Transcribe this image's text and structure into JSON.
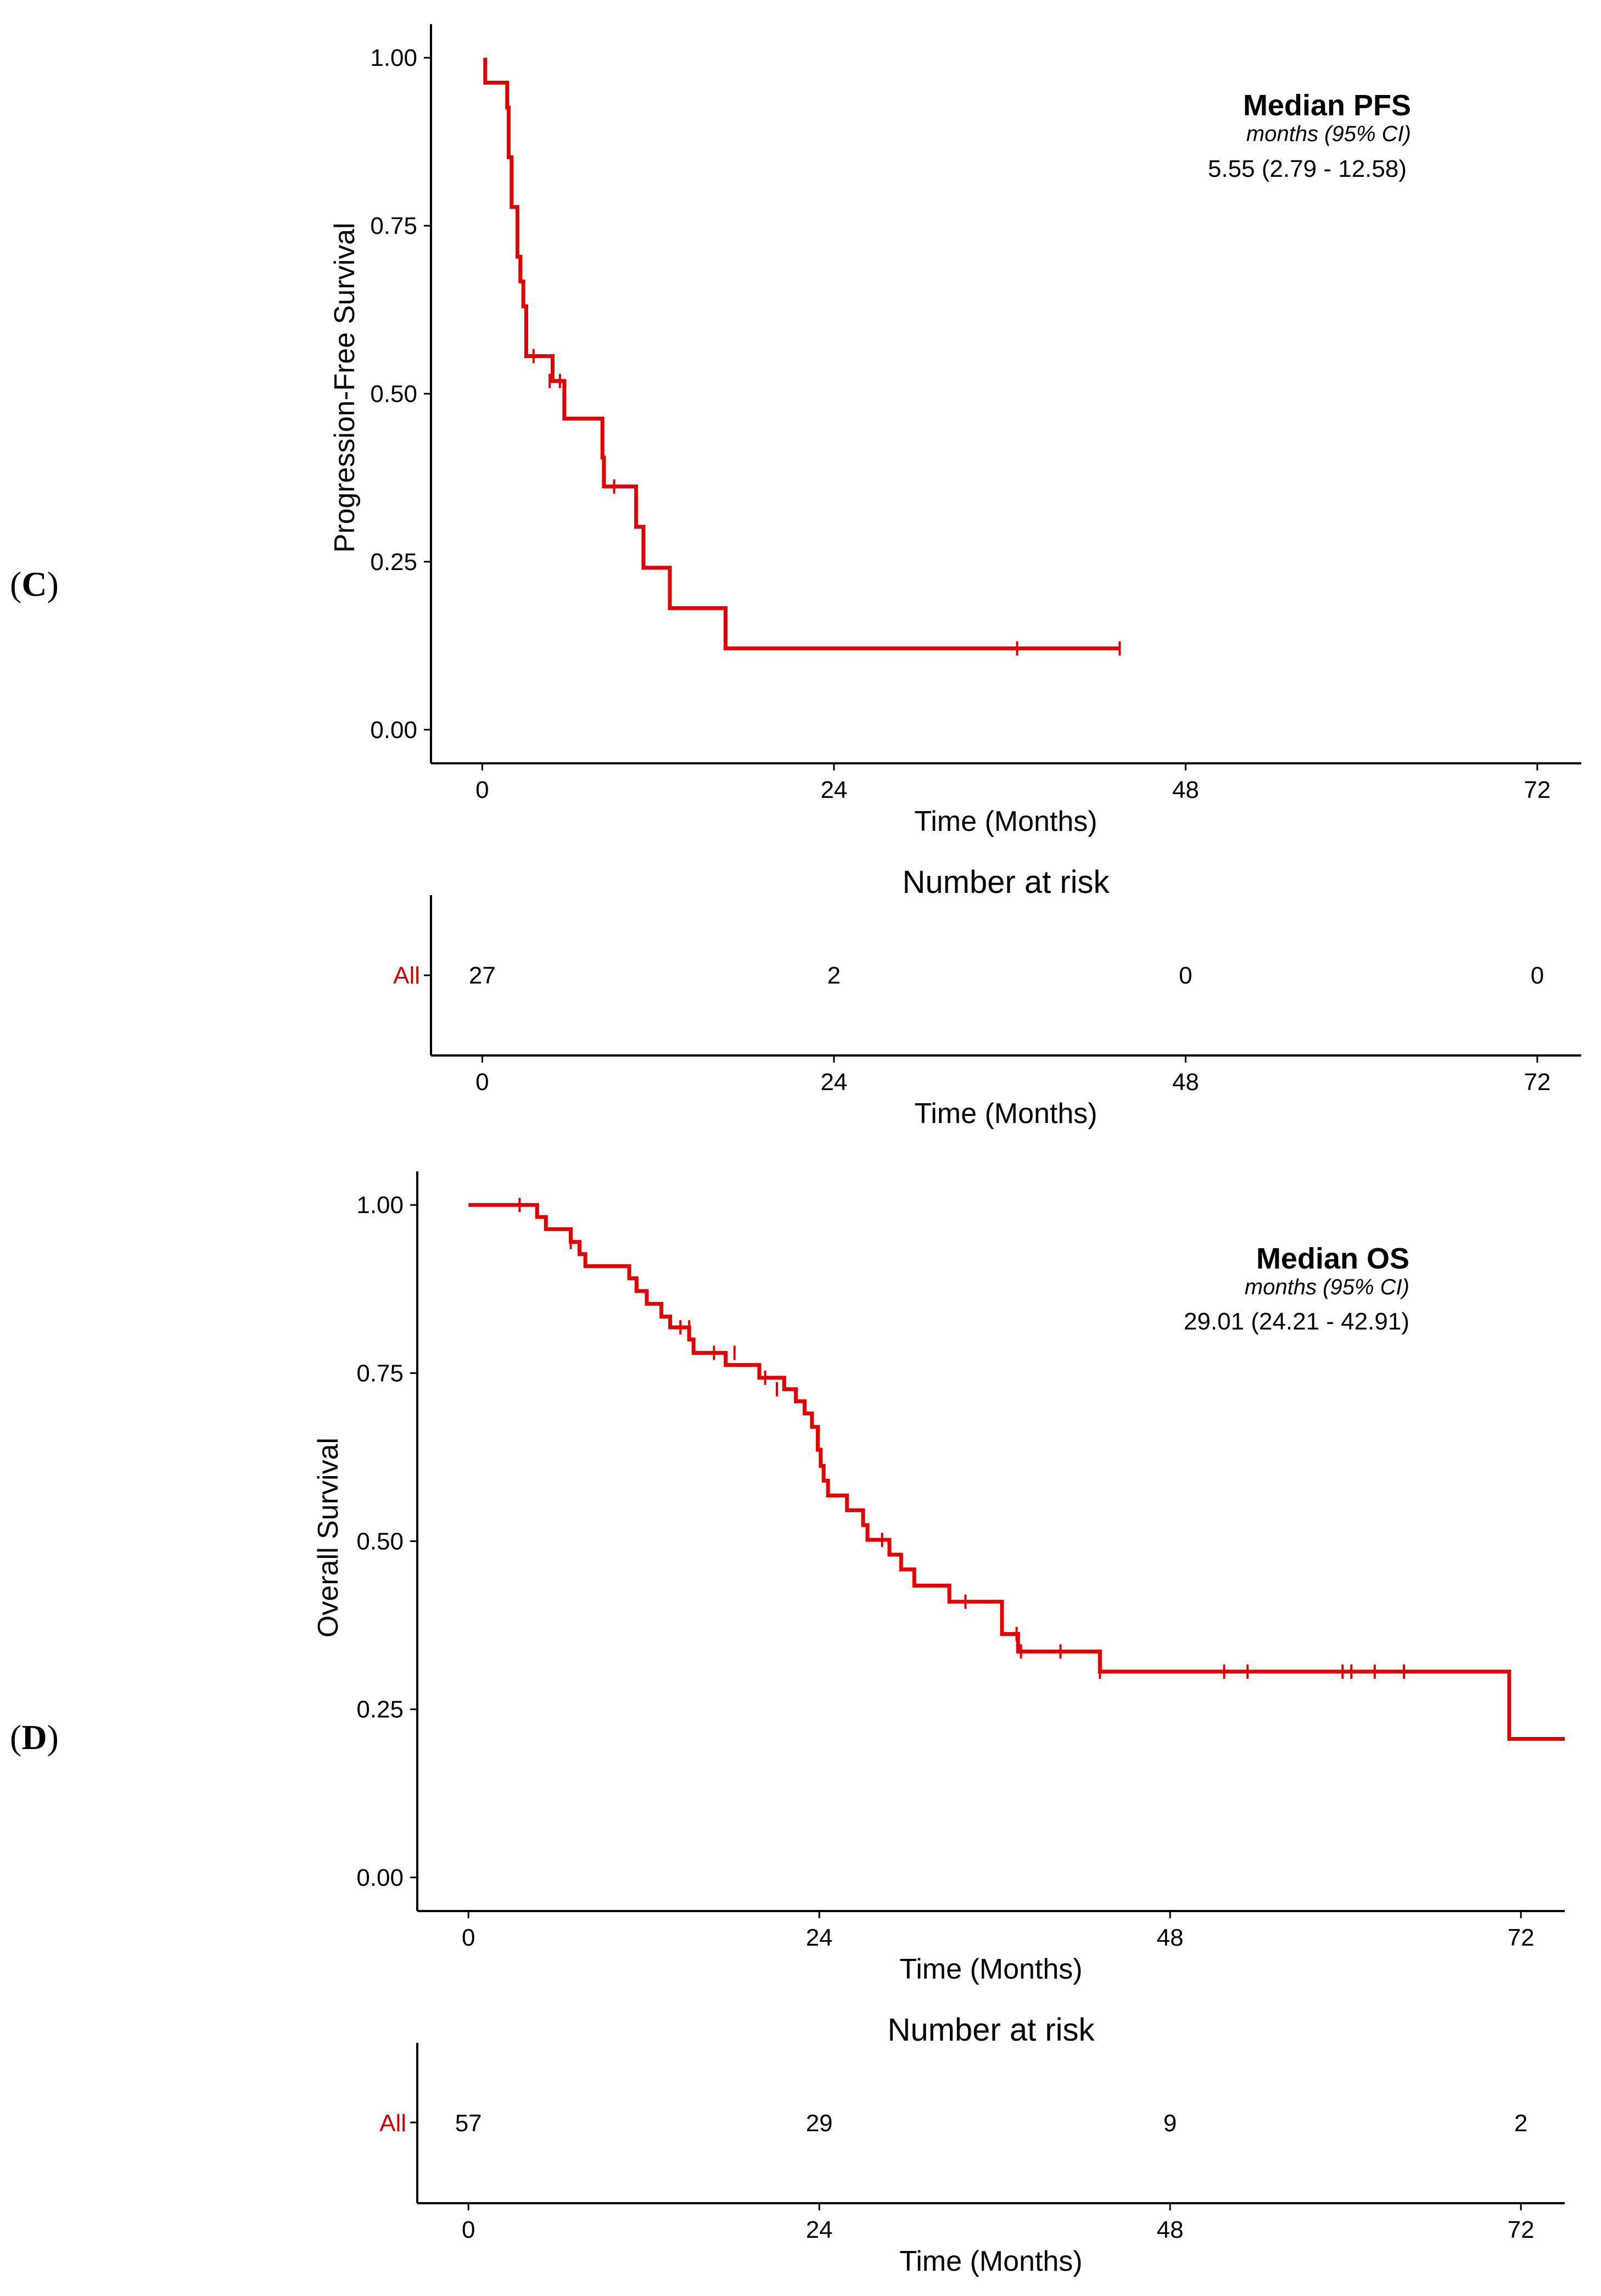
{
  "colors": {
    "curve": "#e00000",
    "strata_label": "#d00000",
    "axis": "#000000"
  },
  "charts": [
    {
      "panel_label": "C",
      "ylabel": "Progression-Free Survival",
      "xlabel": "Time (Months)",
      "median": {
        "title": "Median PFS",
        "subtitle": "months (95% CI)",
        "value": "5.55 (2.79 - 12.58)"
      },
      "risk_table": {
        "title": "Number at risk",
        "strata": "All",
        "counts": [
          "27",
          "2",
          "0",
          "0"
        ],
        "xlabel": "Time (Months)"
      }
    },
    {
      "panel_label": "D",
      "ylabel": "Overall Survival",
      "xlabel": "Time (Months)",
      "median": {
        "title": "Median OS",
        "subtitle": "months (95% CI)",
        "value": "29.01 (24.21 - 42.91)"
      },
      "risk_table": {
        "title": "Number at risk",
        "strata": "All",
        "counts": [
          "57",
          "29",
          "9",
          "2"
        ],
        "xlabel": "Time (Months)"
      }
    }
  ],
  "chart_data": [
    {
      "type": "line",
      "subtype": "kaplan-meier step",
      "title": "",
      "xlabel": "Time (Months)",
      "ylabel": "Progression-Free Survival",
      "xlim": [
        -3.5,
        75
      ],
      "ylim": [
        -0.05,
        1.05
      ],
      "x_ticks": [
        "0",
        "24",
        "48",
        "72"
      ],
      "y_ticks": [
        "0.00",
        "0.25",
        "0.50",
        "0.75",
        "1.00"
      ],
      "grid": false,
      "series": [
        {
          "steps": [
            [
              0.2,
              1.0
            ],
            [
              0.2,
              0.963
            ],
            [
              1.7,
              0.926
            ],
            [
              1.8,
              0.852
            ],
            [
              2.0,
              0.778
            ],
            [
              2.4,
              0.704
            ],
            [
              2.6,
              0.667
            ],
            [
              2.8,
              0.63
            ],
            [
              3.0,
              0.556
            ],
            [
              4.8,
              0.519
            ],
            [
              5.6,
              0.463
            ],
            [
              8.2,
              0.405
            ],
            [
              8.3,
              0.362
            ],
            [
              10.5,
              0.302
            ],
            [
              11.0,
              0.241
            ],
            [
              12.8,
              0.181
            ],
            [
              16.6,
              0.121
            ],
            [
              43.5,
              0.121
            ]
          ],
          "censors": [
            [
              3.5,
              0.556
            ],
            [
              4.6,
              0.519
            ],
            [
              5.3,
              0.519
            ],
            [
              9.0,
              0.362
            ],
            [
              36.5,
              0.121
            ],
            [
              43.5,
              0.121
            ]
          ]
        }
      ],
      "annotations": [
        "Median PFS",
        "months (95% CI)",
        "5.55 (2.79 - 12.58)"
      ],
      "risk_table": {
        "x": [
          0,
          24,
          48,
          72
        ],
        "counts": [
          27,
          2,
          0,
          0
        ]
      }
    },
    {
      "type": "line",
      "subtype": "kaplan-meier step",
      "title": "",
      "xlabel": "Time (Months)",
      "ylabel": "Overall Survival",
      "xlim": [
        -3.5,
        75
      ],
      "ylim": [
        -0.05,
        1.05
      ],
      "x_ticks": [
        "0",
        "24",
        "48",
        "72"
      ],
      "y_ticks": [
        "0.00",
        "0.25",
        "0.50",
        "0.75",
        "1.00"
      ],
      "grid": false,
      "series": [
        {
          "steps": [
            [
              0,
              1.0
            ],
            [
              4.7,
              0.982
            ],
            [
              5.3,
              0.964
            ],
            [
              7.0,
              0.945
            ],
            [
              7.6,
              0.927
            ],
            [
              8.0,
              0.909
            ],
            [
              11.0,
              0.891
            ],
            [
              11.5,
              0.872
            ],
            [
              12.2,
              0.853
            ],
            [
              13.2,
              0.834
            ],
            [
              13.8,
              0.818
            ],
            [
              15.1,
              0.8
            ],
            [
              15.4,
              0.78
            ],
            [
              17.6,
              0.762
            ],
            [
              19.9,
              0.743
            ],
            [
              21.6,
              0.726
            ],
            [
              22.4,
              0.708
            ],
            [
              23.0,
              0.69
            ],
            [
              23.5,
              0.67
            ],
            [
              23.9,
              0.636
            ],
            [
              24.1,
              0.612
            ],
            [
              24.3,
              0.59
            ],
            [
              24.6,
              0.568
            ],
            [
              25.9,
              0.546
            ],
            [
              27.0,
              0.524
            ],
            [
              27.3,
              0.502
            ],
            [
              28.8,
              0.48
            ],
            [
              29.6,
              0.458
            ],
            [
              30.5,
              0.434
            ],
            [
              32.9,
              0.41
            ],
            [
              36.5,
              0.362
            ],
            [
              37.6,
              0.336
            ],
            [
              43.2,
              0.306
            ],
            [
              71.2,
              0.306
            ],
            [
              71.2,
              0.206
            ],
            [
              75.0,
              0.206
            ]
          ],
          "censors": [
            [
              3.5,
              1.0
            ],
            [
              7.0,
              0.945
            ],
            [
              14.5,
              0.818
            ],
            [
              15.1,
              0.818
            ],
            [
              16.8,
              0.78
            ],
            [
              18.2,
              0.78
            ],
            [
              20.3,
              0.743
            ],
            [
              21.1,
              0.726
            ],
            [
              28.3,
              0.502
            ],
            [
              34.0,
              0.41
            ],
            [
              37.5,
              0.362
            ],
            [
              37.8,
              0.336
            ],
            [
              40.5,
              0.336
            ],
            [
              43.2,
              0.306
            ],
            [
              51.7,
              0.306
            ],
            [
              53.3,
              0.306
            ],
            [
              59.8,
              0.306
            ],
            [
              60.4,
              0.306
            ],
            [
              62.0,
              0.306
            ],
            [
              64.0,
              0.306
            ]
          ]
        }
      ],
      "annotations": [
        "Median OS",
        "months (95% CI)",
        "29.01 (24.21 - 42.91)"
      ],
      "risk_table": {
        "x": [
          0,
          24,
          48,
          72
        ],
        "counts": [
          57,
          29,
          9,
          2
        ]
      }
    }
  ]
}
